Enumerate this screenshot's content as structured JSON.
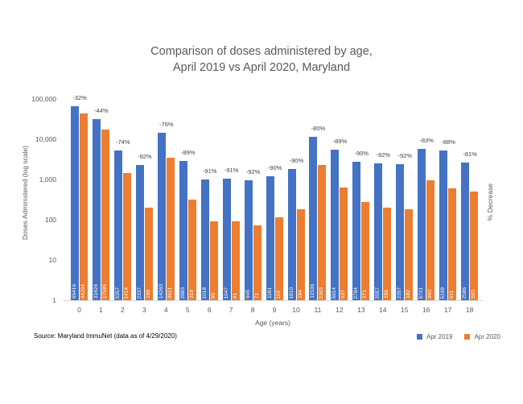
{
  "title": {
    "line1": "Comparison of doses administered by age,",
    "line2": "April 2019 vs April 2020, Maryland"
  },
  "source_note": "Source: Maryland ImmuNet (data as of 4/29/2020)",
  "axes": {
    "y_label": "Doses Administered (log scale)",
    "y2_label": "% Decrease",
    "x_label": "Age (years)",
    "y_ticks": [
      "100,000",
      "10,000",
      "1,000",
      "100",
      "10",
      "1"
    ]
  },
  "legend": {
    "items": [
      {
        "label": "Apr 2019",
        "color": "#4472C4"
      },
      {
        "label": "Apr 2020",
        "color": "#ED7D31"
      }
    ]
  },
  "colors": {
    "apr2019_bar": "#4472C4",
    "apr2020_bar": "#ED7D31",
    "title_text": "#595959",
    "axis_text": "#595959",
    "pct_label_text": "#404040",
    "baseline": "#D9D9D9"
  },
  "chart_data": {
    "type": "bar",
    "scale": "log",
    "title": "Comparison of doses administered by age, April 2019 vs April 2020, Maryland",
    "xlabel": "Age (years)",
    "ylabel": "Doses Administered (log scale)",
    "y2label": "% Decrease",
    "ylim": [
      1,
      100000
    ],
    "grid": false,
    "legend_position": "bottom-right",
    "categories": [
      0,
      1,
      2,
      3,
      4,
      5,
      6,
      7,
      8,
      9,
      10,
      11,
      12,
      13,
      14,
      15,
      16,
      17,
      18
    ],
    "series": [
      {
        "name": "Apr 2019",
        "values": [
          65416,
          31624,
          5357,
          2337,
          14263,
          2883,
          1018,
          1047,
          945,
          1181,
          1810,
          11536,
          5614,
          2784,
          2557,
          2357,
          5721,
          5199,
          2586
        ]
      },
      {
        "name": "Apr 2020",
        "values": [
          44294,
          17595,
          1414,
          198,
          3421,
          319,
          90,
          91,
          71,
          116,
          184,
          2303,
          637,
          271,
          196,
          182,
          960,
          611,
          503
        ]
      }
    ],
    "pct_decrease_labels": [
      "-32%",
      "-44%",
      "-74%",
      "-92%",
      "-76%",
      "-89%",
      "-91%",
      "-91%",
      "-92%",
      "-90%",
      "-90%",
      "-80%",
      "-89%",
      "-90%",
      "-92%",
      "-92%",
      "-83%",
      "-88%",
      "-81%"
    ]
  }
}
